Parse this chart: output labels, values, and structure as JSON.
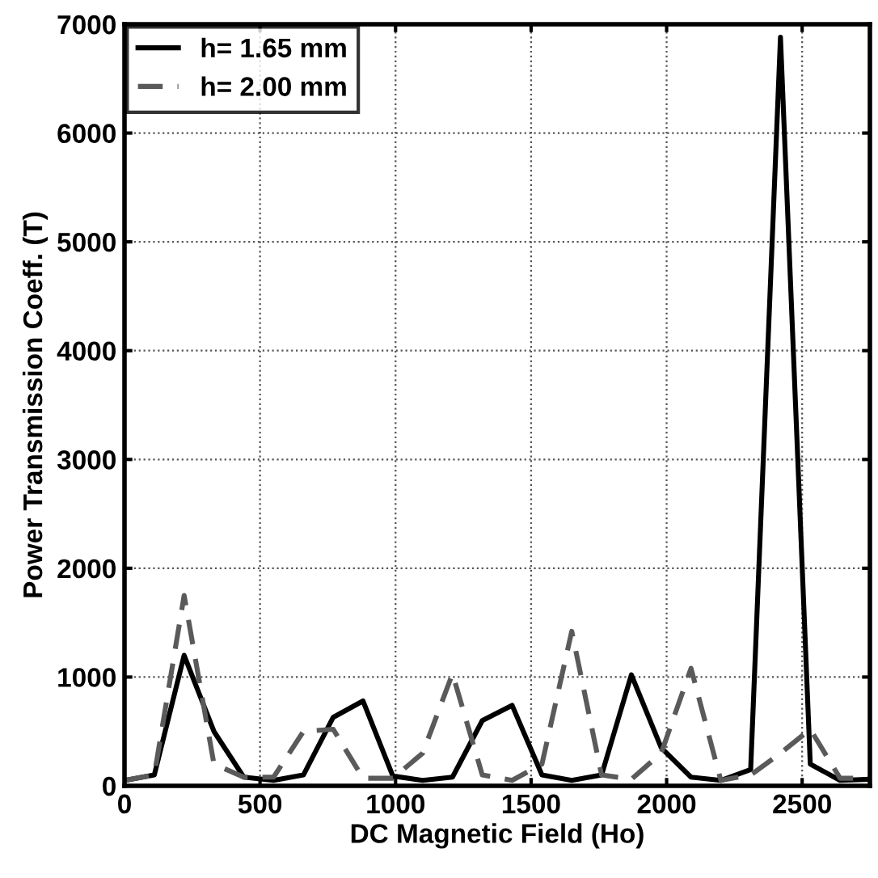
{
  "chart_data": {
    "type": "line",
    "xlabel": "DC Magnetic Field (Ho)",
    "ylabel": "Power Transmission Coeff. (T)",
    "x": [
      0,
      110,
      220,
      330,
      440,
      550,
      660,
      770,
      880,
      990,
      1100,
      1210,
      1320,
      1430,
      1540,
      1650,
      1760,
      1870,
      1980,
      2090,
      2200,
      2310,
      2420,
      2530,
      2640,
      2750
    ],
    "series": [
      {
        "name": "h= 1.65 mm",
        "color": "#000000",
        "line_style": "solid",
        "values": [
          50,
          100,
          1200,
          500,
          80,
          50,
          100,
          630,
          780,
          90,
          50,
          80,
          600,
          740,
          100,
          50,
          100,
          1020,
          350,
          80,
          50,
          150,
          6880,
          200,
          50,
          60
        ]
      },
      {
        "name": "h= 2.00 mm",
        "color": "#5a5a5a",
        "line_style": "dashed",
        "values": [
          50,
          100,
          1750,
          200,
          80,
          80,
          500,
          520,
          70,
          70,
          300,
          1030,
          100,
          50,
          200,
          1420,
          100,
          60,
          300,
          1080,
          50,
          100,
          300,
          520,
          70,
          70
        ]
      }
    ],
    "xlim": [
      0,
      2750
    ],
    "ylim": [
      0,
      7000
    ],
    "xticks": [
      0,
      500,
      1000,
      1500,
      2000,
      2500
    ],
    "yticks": [
      0,
      1000,
      2000,
      3000,
      4000,
      5000,
      6000,
      7000
    ],
    "grid": true,
    "legend": "top left"
  }
}
